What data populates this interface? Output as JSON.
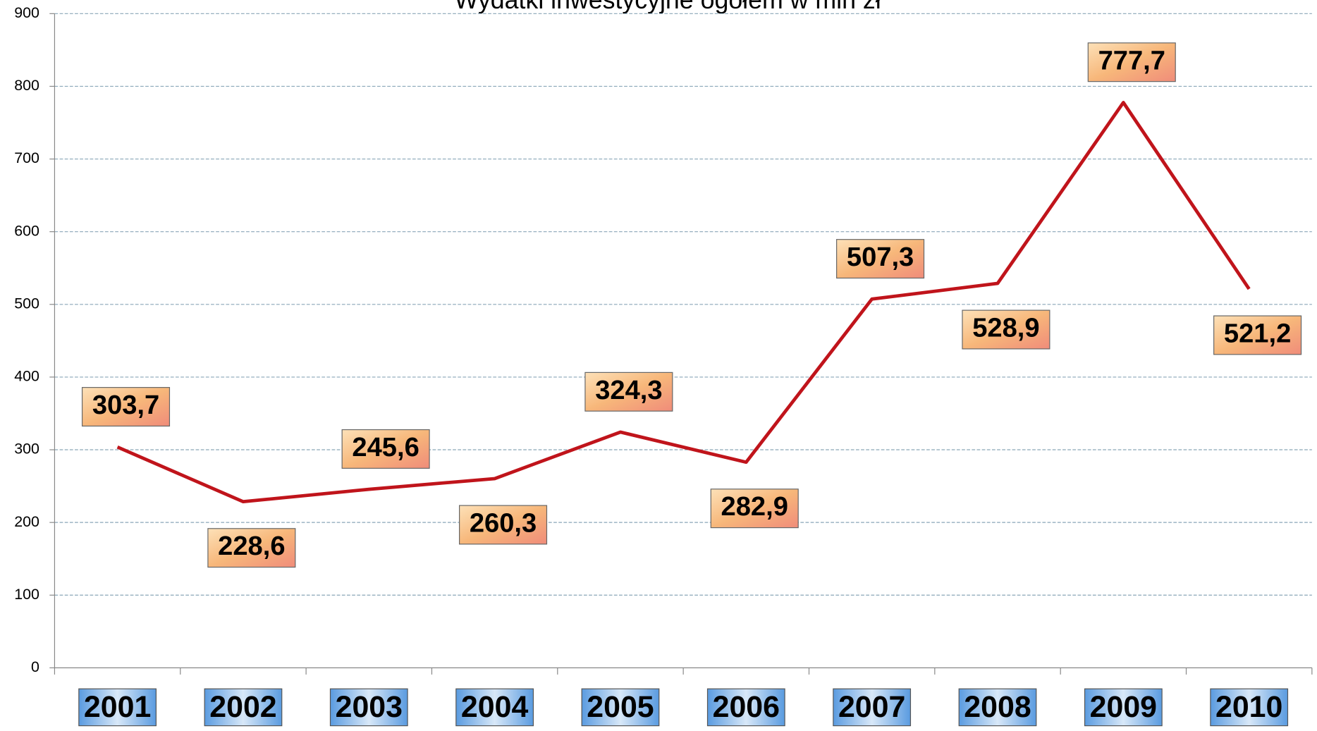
{
  "chart_data": {
    "type": "line",
    "title": "Wydatki inwestycyjne ogółem w mln zł",
    "categories": [
      "2001",
      "2002",
      "2003",
      "2004",
      "2005",
      "2006",
      "2007",
      "2008",
      "2009",
      "2010"
    ],
    "series": [
      {
        "name": "Wydatki inwestycyjne ogółem w mln zł",
        "color": "#c0141b",
        "values": [
          303.7,
          228.6,
          245.6,
          260.3,
          324.3,
          282.9,
          507.3,
          528.9,
          777.7,
          521.2
        ],
        "value_labels": [
          "303,7",
          "228,6",
          "245,6",
          "260,3",
          "324,3",
          "282,9",
          "507,3",
          "528,9",
          "777,7",
          "521,2"
        ]
      }
    ],
    "ylim": [
      0,
      900
    ],
    "yticks": [
      0,
      100,
      200,
      300,
      400,
      500,
      600,
      700,
      800,
      900
    ],
    "grid": true
  }
}
